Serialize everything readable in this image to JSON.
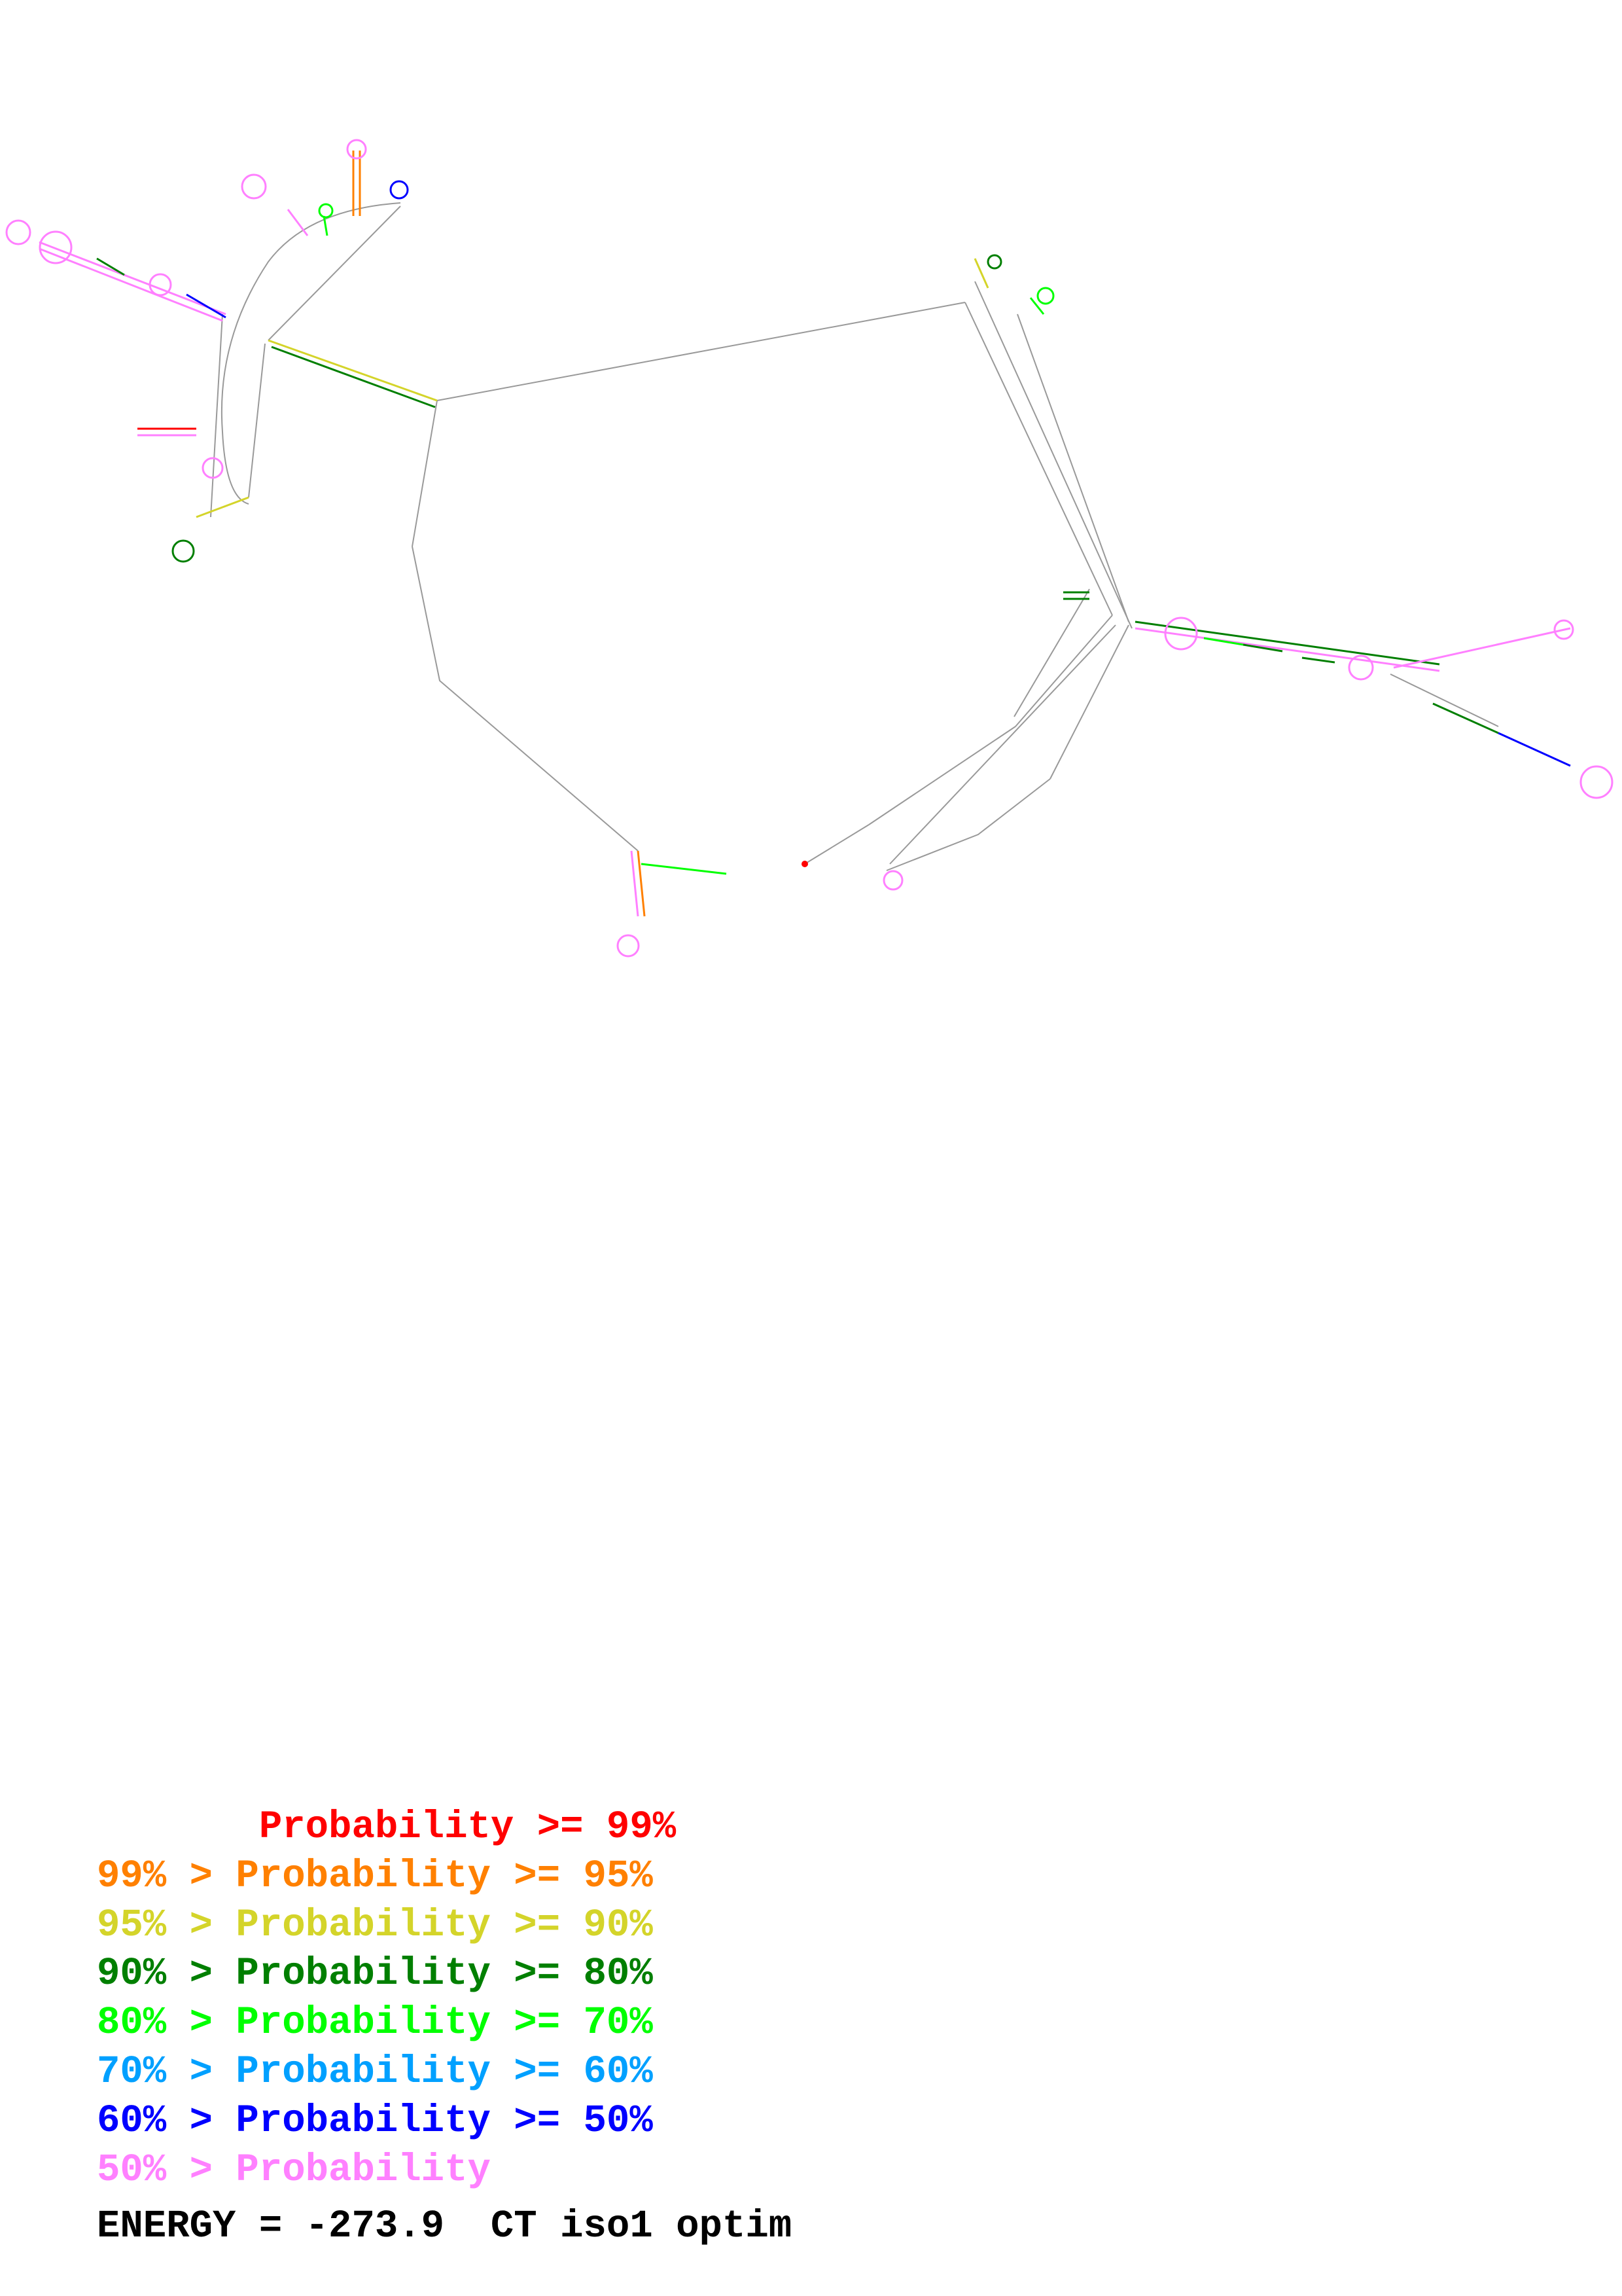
{
  "legend": [
    {
      "text": "       Probability >= 99%",
      "color": "#ff0000"
    },
    {
      "text": "99% > Probability >= 95%",
      "color": "#ff8000"
    },
    {
      "text": "95% > Probability >= 90%",
      "color": "#d4d42a"
    },
    {
      "text": "90% > Probability >= 80%",
      "color": "#007f00"
    },
    {
      "text": "80% > Probability >= 70%",
      "color": "#00ff00"
    },
    {
      "text": "70% > Probability >= 60%",
      "color": "#00a0ff"
    },
    {
      "text": "60% > Probability >= 50%",
      "color": "#0000ff"
    },
    {
      "text": "50% > Probability",
      "color": "#ff80ff"
    }
  ],
  "energy": "ENERGY = -273.9  CT iso1 optim",
  "colors": {
    "backbone": "#888888",
    "background": "#ffffff"
  }
}
